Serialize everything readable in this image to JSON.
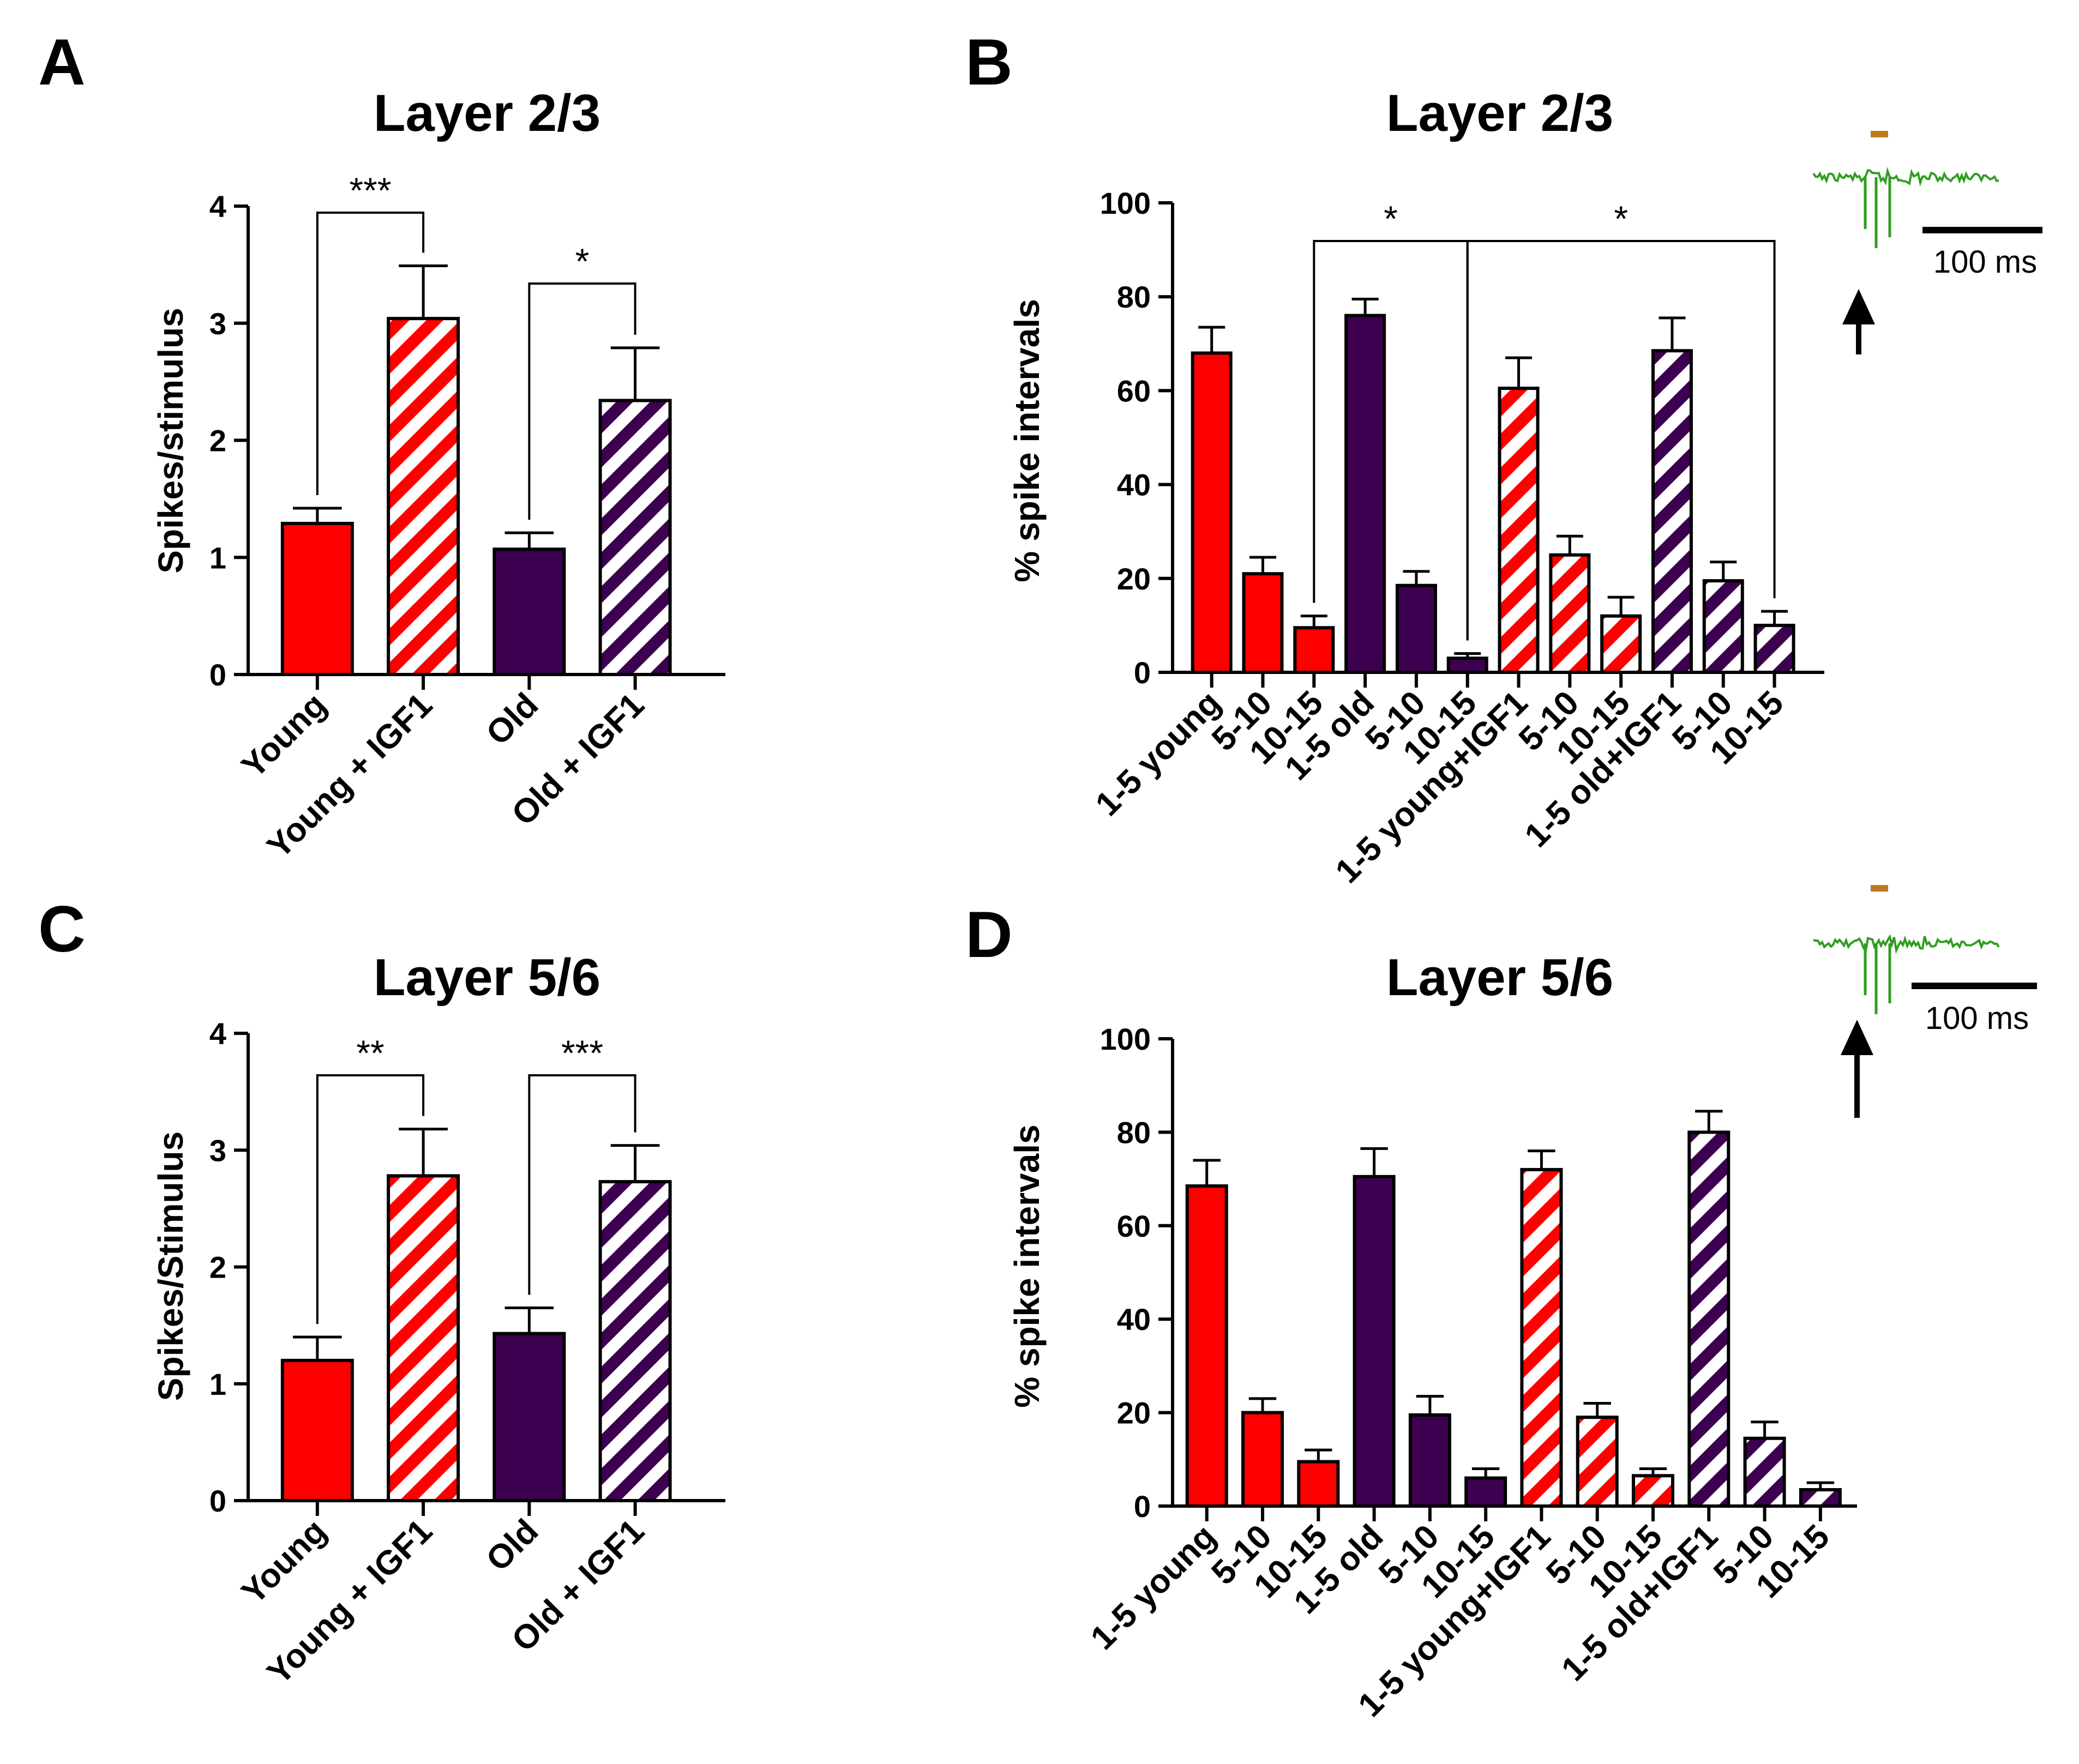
{
  "colors": {
    "young": "#ff0000",
    "old": "#3d0050",
    "trace": "#2e9e1e",
    "stim": "#c07820"
  },
  "trace_icon": "spike-trace-icon",
  "arrow_icon": "up-arrow-icon",
  "chart_data": [
    {
      "panel": "A",
      "type": "bar",
      "title": "Layer 2/3",
      "ylabel": "Spikes/stimulus",
      "ylim": [
        0,
        4
      ],
      "yticks": [
        "0",
        "1",
        "2",
        "3",
        "4"
      ],
      "categories": [
        "Young",
        "Young + IGF1",
        "Old",
        "Old + IGF1"
      ],
      "values": [
        1.29,
        3.04,
        1.07,
        2.34
      ],
      "errors": [
        0.13,
        0.45,
        0.14,
        0.45
      ],
      "groups": [
        "young",
        "young",
        "old",
        "old"
      ],
      "hatched": [
        false,
        true,
        false,
        true
      ],
      "significance": [
        {
          "from": 0,
          "to": 1,
          "label": "***"
        },
        {
          "from": 2,
          "to": 3,
          "label": "*"
        }
      ]
    },
    {
      "panel": "B",
      "type": "bar",
      "title": "Layer 2/3",
      "ylabel": "% spike intervals",
      "ylim": [
        0,
        100
      ],
      "yticks": [
        "0",
        "20",
        "40",
        "60",
        "80",
        "100"
      ],
      "categories": [
        "1-5 young",
        "5-10",
        "10-15",
        "1-5 old",
        "5-10",
        "10-15",
        "1-5 young+IGF1",
        "5-10",
        "10-15",
        "1-5 old+IGF1",
        "5-10",
        "10-15"
      ],
      "values": [
        68,
        21,
        9.5,
        76,
        18.5,
        3,
        60.5,
        25,
        12,
        68.5,
        19.5,
        10
      ],
      "errors": [
        5.5,
        3.5,
        2.5,
        3.5,
        3.0,
        1.0,
        6.5,
        4.0,
        4.0,
        7.0,
        4.0,
        3.0
      ],
      "groups": [
        "young",
        "young",
        "young",
        "old",
        "old",
        "old",
        "young",
        "young",
        "young",
        "old",
        "old",
        "old"
      ],
      "hatched": [
        false,
        false,
        false,
        false,
        false,
        false,
        true,
        true,
        true,
        true,
        true,
        true
      ],
      "significance": [
        {
          "from": 2,
          "to": 5,
          "label": "*"
        },
        {
          "from": 5,
          "to": 11,
          "label": "*"
        }
      ],
      "inset": {
        "scale_label": "100 ms"
      }
    },
    {
      "panel": "C",
      "type": "bar",
      "title": "Layer 5/6",
      "ylabel": "Spikes/Stimulus",
      "ylim": [
        0,
        4
      ],
      "yticks": [
        "0",
        "1",
        "2",
        "3",
        "4"
      ],
      "categories": [
        "Young",
        "Young + IGF1",
        "Old",
        "Old + IGF1"
      ],
      "values": [
        1.2,
        2.78,
        1.43,
        2.73
      ],
      "errors": [
        0.2,
        0.4,
        0.22,
        0.31
      ],
      "groups": [
        "young",
        "young",
        "old",
        "old"
      ],
      "hatched": [
        false,
        true,
        false,
        true
      ],
      "significance": [
        {
          "from": 0,
          "to": 1,
          "label": "**"
        },
        {
          "from": 2,
          "to": 3,
          "label": "***"
        }
      ]
    },
    {
      "panel": "D",
      "type": "bar",
      "title": "Layer 5/6",
      "ylabel": "% spike intervals",
      "ylim": [
        0,
        100
      ],
      "yticks": [
        "0",
        "20",
        "40",
        "60",
        "80",
        "100"
      ],
      "categories": [
        "1-5 young",
        "5-10",
        "10-15",
        "1-5 old",
        "5-10",
        "10-15",
        "1-5 young+IGF1",
        "5-10",
        "10-15",
        "1-5 old+IGF1",
        "5-10",
        "10-15"
      ],
      "values": [
        68.5,
        20,
        9.5,
        70.5,
        19.5,
        6,
        72,
        19,
        6.5,
        80,
        14.5,
        3.5
      ],
      "errors": [
        5.5,
        3.0,
        2.5,
        6.0,
        4.0,
        2.0,
        4.0,
        3.0,
        1.5,
        4.5,
        3.5,
        1.5
      ],
      "groups": [
        "young",
        "young",
        "young",
        "old",
        "old",
        "old",
        "young",
        "young",
        "young",
        "old",
        "old",
        "old"
      ],
      "hatched": [
        false,
        false,
        false,
        false,
        false,
        false,
        true,
        true,
        true,
        true,
        true,
        true
      ],
      "significance": [],
      "inset": {
        "scale_label": "100 ms"
      }
    }
  ]
}
